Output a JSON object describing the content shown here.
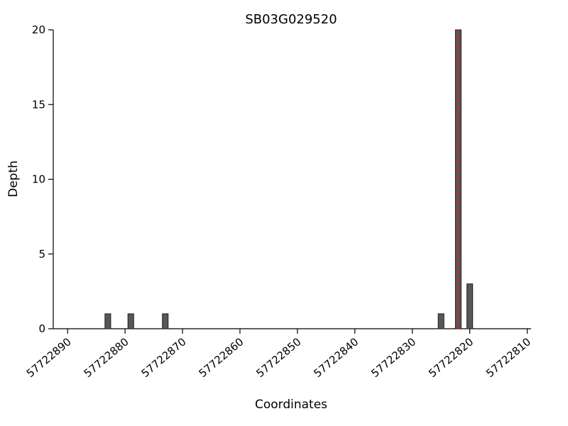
{
  "chart_data": {
    "type": "bar",
    "title": "SB03G029520",
    "xlabel": "Coordinates",
    "ylabel": "Depth",
    "x_axis_reversed": true,
    "xlim": [
      57722892.5,
      57722809.7
    ],
    "ylim": [
      0,
      20
    ],
    "x_ticks": [
      57722890,
      57722880,
      57722870,
      57722860,
      57722850,
      57722840,
      57722830,
      57722820,
      57722810
    ],
    "x_tick_labels": [
      "57722890",
      "57722880",
      "57722870",
      "57722860",
      "57722850",
      "57722840",
      "57722830",
      "57722820",
      "57722810"
    ],
    "y_ticks": [
      0,
      5,
      10,
      15,
      20
    ],
    "y_tick_labels": [
      "0",
      "5",
      "10",
      "15",
      "20"
    ],
    "x_tick_label_rotation_deg": 40,
    "grid": false,
    "bar_width": 1,
    "bars": [
      {
        "coordinate": 57722883,
        "depth": 1
      },
      {
        "coordinate": 57722879,
        "depth": 1
      },
      {
        "coordinate": 57722873,
        "depth": 1
      },
      {
        "coordinate": 57722825,
        "depth": 1
      },
      {
        "coordinate": 57722822,
        "depth": 20
      },
      {
        "coordinate": 57722820,
        "depth": 3
      }
    ],
    "marker_line": {
      "coordinate": 57722822,
      "style": "dashed",
      "color": "#cc2222",
      "y_from": 0,
      "y_to": 20
    },
    "colors": {
      "bar_fill": "#575757",
      "bar_edge": "#1f1f1f",
      "axis": "#000000",
      "marker": "#cc2222",
      "background": "#ffffff"
    }
  }
}
